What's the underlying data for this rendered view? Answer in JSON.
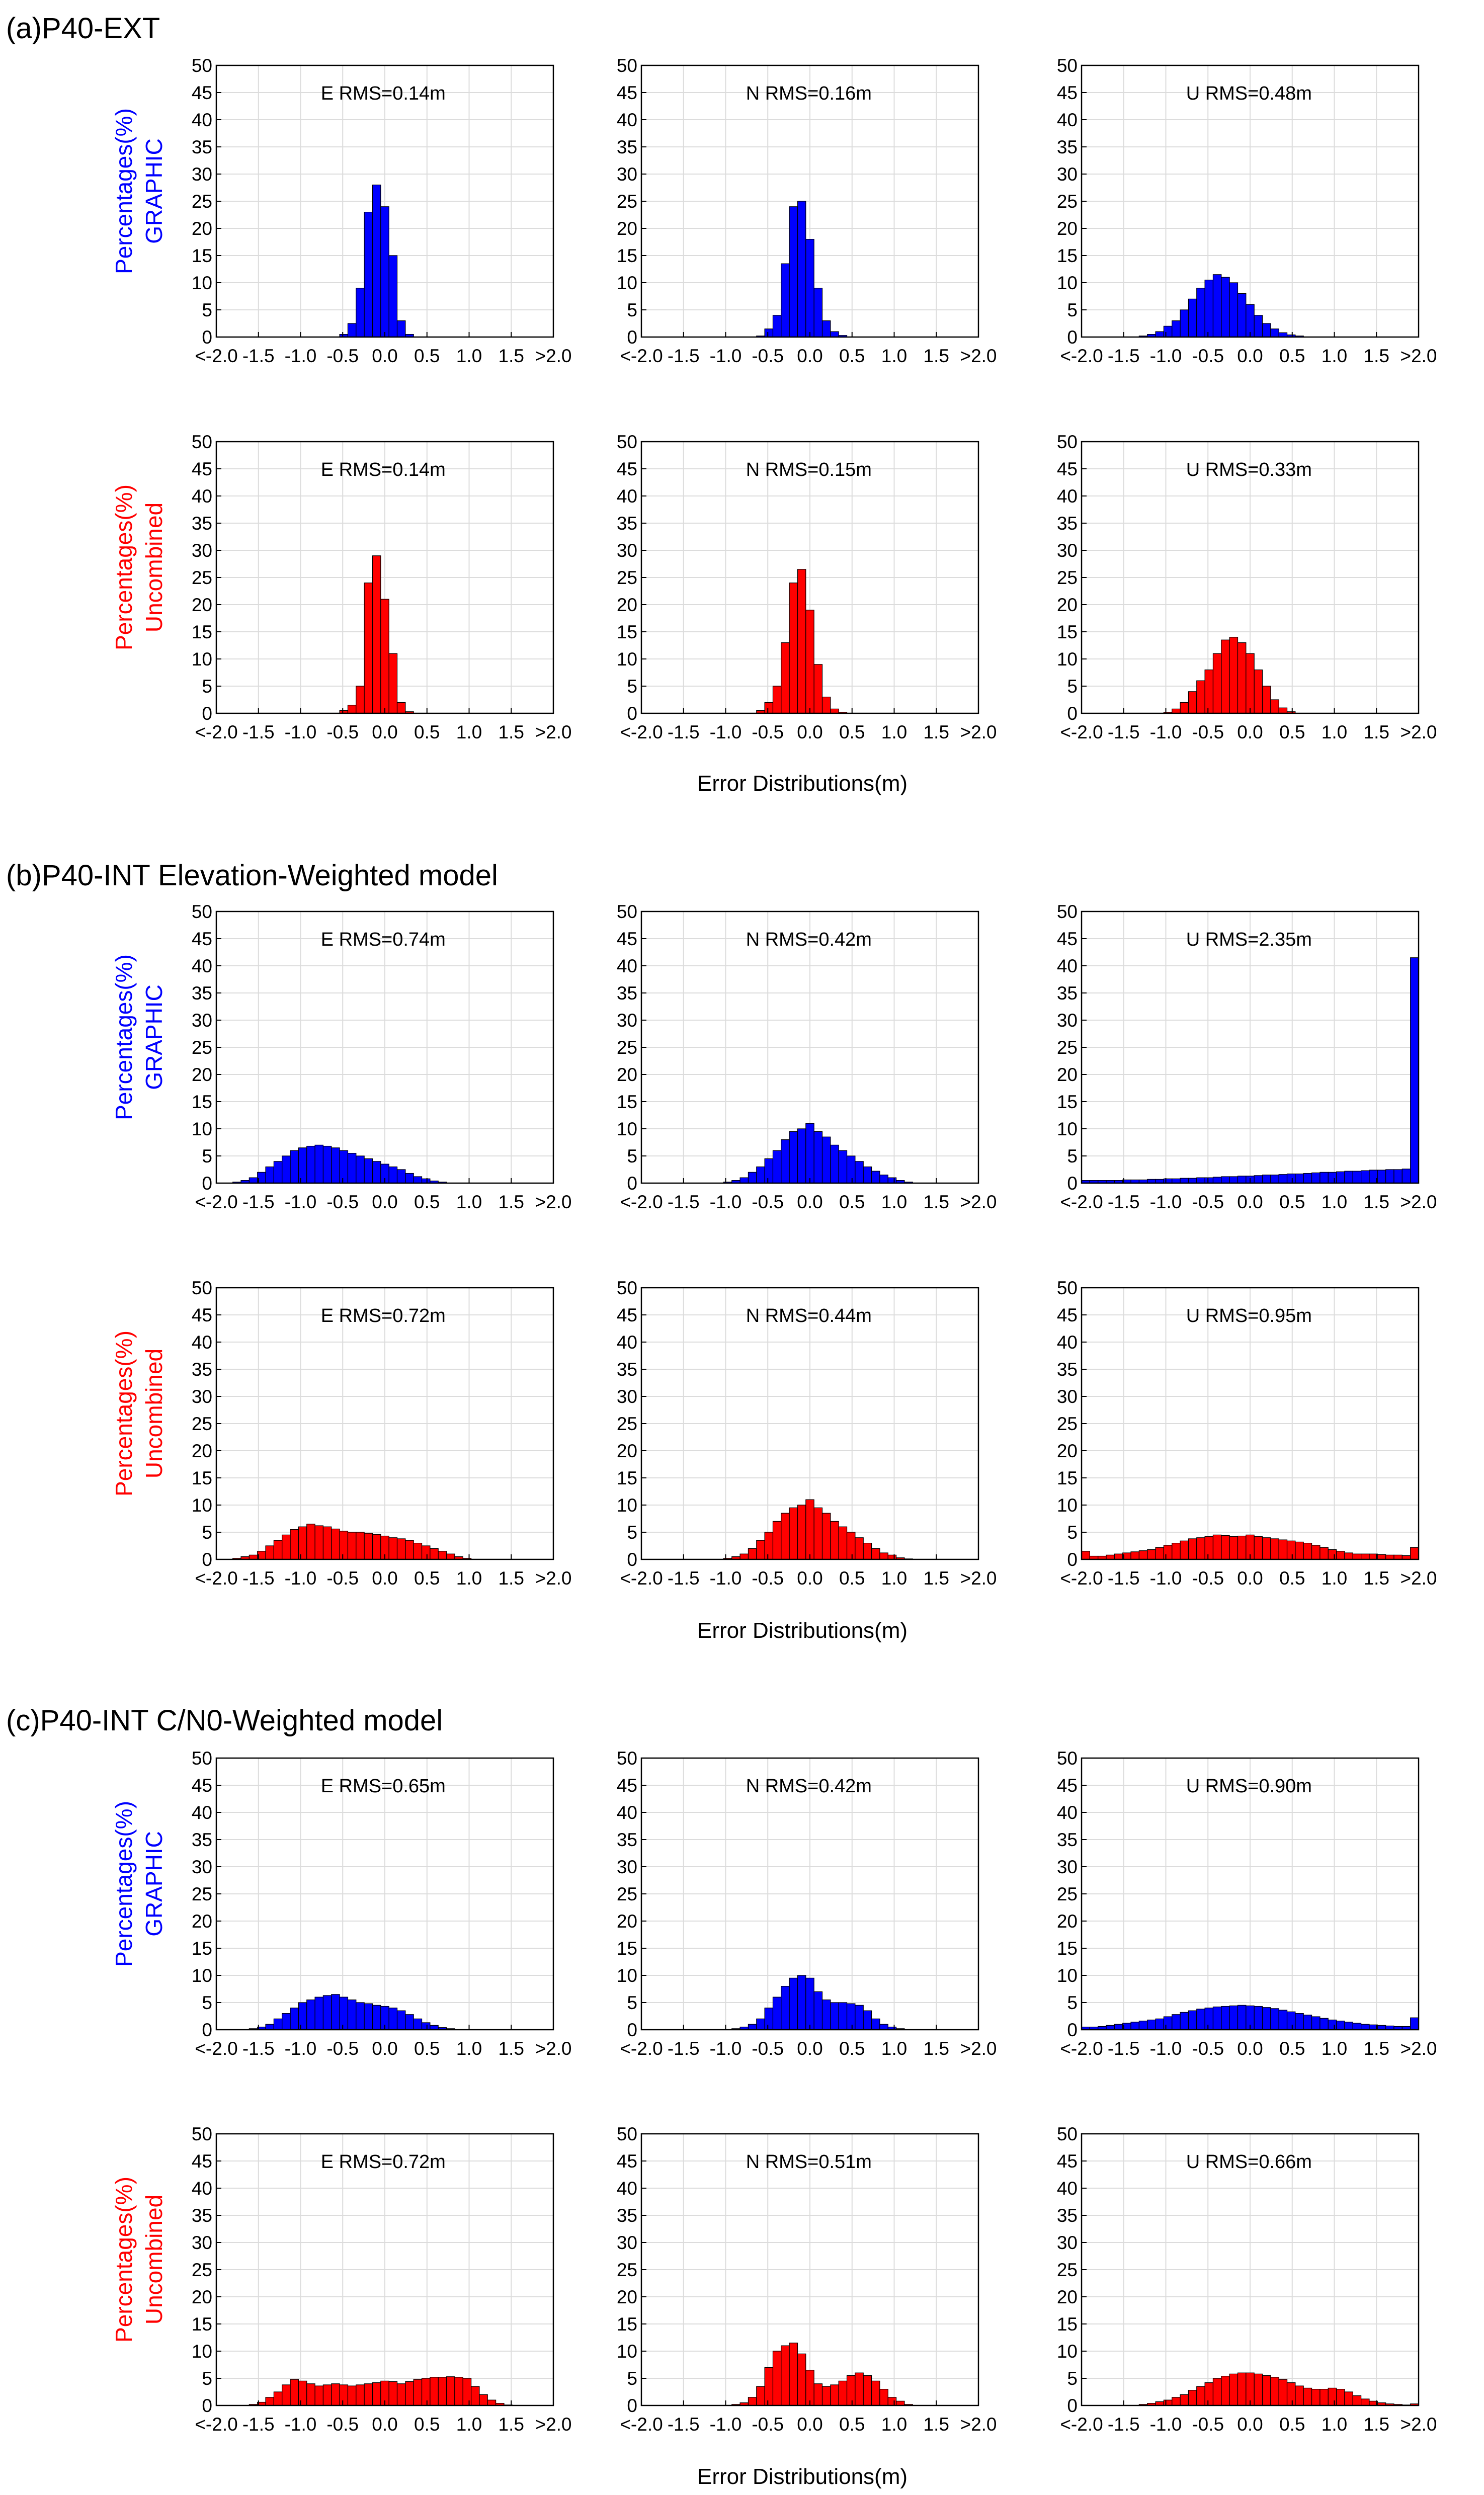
{
  "colors": {
    "GRAPHIC": "#0000ff",
    "Uncombined": "#ff0000",
    "grid": "#dcdcdc",
    "axis": "#000000"
  },
  "ylabel_models": [
    "GRAPHIC",
    "Uncombined"
  ],
  "ylabel": "Percentages(%)",
  "xlabel": "Error Distributions(m)",
  "xticks": [
    "<-2.0",
    "-1.5",
    "-1.0",
    "-0.5",
    "0.0",
    "0.5",
    "1.0",
    "1.5",
    ">2.0"
  ],
  "yticks": [
    "0",
    "5",
    "10",
    "15",
    "20",
    "25",
    "30",
    "35",
    "40",
    "45",
    "50"
  ],
  "sections": [
    {
      "title": "(a)P40-EXT"
    },
    {
      "title": "(b)P40-INT Elevation-Weighted model"
    },
    {
      "title": "(c)P40-INT C/N0-Weighted model"
    }
  ],
  "chart_data": [
    {
      "type": "bar",
      "section": 0,
      "model": "GRAPHIC",
      "component": "E",
      "rms_label": "E  RMS=0.14m",
      "ylim": [
        0,
        50
      ],
      "xlim": [
        -2.0,
        2.0
      ],
      "bin_width": 0.1,
      "grid": true,
      "values": [
        0,
        0,
        0,
        0,
        0,
        0,
        0,
        0,
        0,
        0,
        0,
        0,
        0,
        0,
        0,
        0.5,
        2.5,
        9,
        23,
        28,
        24,
        15,
        3,
        0.5,
        0,
        0,
        0,
        0,
        0,
        0,
        0,
        0,
        0,
        0,
        0,
        0,
        0,
        0,
        0,
        0,
        0
      ]
    },
    {
      "type": "bar",
      "section": 0,
      "model": "GRAPHIC",
      "component": "N",
      "rms_label": "N  RMS=0.16m",
      "ylim": [
        0,
        50
      ],
      "xlim": [
        -2.0,
        2.0
      ],
      "bin_width": 0.1,
      "grid": true,
      "values": [
        0,
        0,
        0,
        0,
        0,
        0,
        0,
        0,
        0,
        0,
        0,
        0,
        0,
        0,
        0.2,
        1.5,
        4,
        13.5,
        24,
        25,
        18,
        9,
        3,
        1,
        0.3,
        0,
        0,
        0,
        0,
        0,
        0,
        0,
        0,
        0,
        0,
        0,
        0,
        0,
        0,
        0,
        0
      ]
    },
    {
      "type": "bar",
      "section": 0,
      "model": "GRAPHIC",
      "component": "U",
      "rms_label": "U  RMS=0.48m",
      "ylim": [
        0,
        50
      ],
      "xlim": [
        -2.0,
        2.0
      ],
      "bin_width": 0.1,
      "grid": true,
      "values": [
        0,
        0,
        0,
        0,
        0,
        0,
        0,
        0.2,
        0.5,
        1,
        2,
        3,
        5,
        7,
        9,
        10.5,
        11.5,
        11,
        10,
        8,
        6,
        4,
        2.5,
        1.5,
        0.8,
        0.4,
        0.2,
        0,
        0,
        0,
        0,
        0,
        0,
        0,
        0,
        0,
        0,
        0,
        0,
        0,
        0
      ]
    },
    {
      "type": "bar",
      "section": 0,
      "model": "Uncombined",
      "component": "E",
      "rms_label": "E  RMS=0.14m",
      "ylim": [
        0,
        50
      ],
      "xlim": [
        -2.0,
        2.0
      ],
      "bin_width": 0.1,
      "grid": true,
      "values": [
        0,
        0,
        0,
        0,
        0,
        0,
        0,
        0,
        0,
        0,
        0,
        0,
        0,
        0,
        0,
        0.5,
        1.5,
        5,
        24,
        29,
        21,
        11,
        2,
        0.3,
        0,
        0,
        0,
        0,
        0,
        0,
        0,
        0,
        0,
        0,
        0,
        0,
        0,
        0,
        0,
        0,
        0
      ]
    },
    {
      "type": "bar",
      "section": 0,
      "model": "Uncombined",
      "component": "N",
      "rms_label": "N  RMS=0.15m",
      "ylim": [
        0,
        50
      ],
      "xlim": [
        -2.0,
        2.0
      ],
      "bin_width": 0.1,
      "grid": true,
      "values": [
        0,
        0,
        0,
        0,
        0,
        0,
        0,
        0,
        0,
        0,
        0,
        0,
        0,
        0,
        0.5,
        2,
        5,
        13,
        24,
        26.5,
        19,
        9,
        3,
        0.8,
        0.2,
        0,
        0,
        0,
        0,
        0,
        0,
        0,
        0,
        0,
        0,
        0,
        0,
        0,
        0,
        0,
        0
      ]
    },
    {
      "type": "bar",
      "section": 0,
      "model": "Uncombined",
      "component": "U",
      "rms_label": "U  RMS=0.33m",
      "ylim": [
        0,
        50
      ],
      "xlim": [
        -2.0,
        2.0
      ],
      "bin_width": 0.1,
      "grid": true,
      "values": [
        0,
        0,
        0,
        0,
        0,
        0,
        0,
        0,
        0,
        0,
        0.2,
        0.8,
        2,
        4,
        6,
        8,
        11,
        13.5,
        14,
        13,
        11,
        8,
        5,
        2.5,
        1,
        0.3,
        0,
        0,
        0,
        0,
        0,
        0,
        0,
        0,
        0,
        0,
        0,
        0,
        0,
        0,
        0
      ]
    },
    {
      "type": "bar",
      "section": 1,
      "model": "GRAPHIC",
      "component": "E",
      "rms_label": "E  RMS=0.74m",
      "ylim": [
        0,
        50
      ],
      "xlim": [
        -2.0,
        2.0
      ],
      "bin_width": 0.1,
      "grid": true,
      "values": [
        0,
        0,
        0.2,
        0.5,
        1,
        2,
        3,
        4,
        5,
        6,
        6.5,
        6.8,
        7,
        6.8,
        6.5,
        6,
        5.5,
        5,
        4.5,
        4,
        3.5,
        3,
        2.5,
        1.8,
        1.2,
        0.8,
        0.4,
        0.2,
        0,
        0,
        0,
        0,
        0,
        0,
        0,
        0,
        0,
        0,
        0,
        0,
        0
      ]
    },
    {
      "type": "bar",
      "section": 1,
      "model": "GRAPHIC",
      "component": "N",
      "rms_label": "N  RMS=0.42m",
      "ylim": [
        0,
        50
      ],
      "xlim": [
        -2.0,
        2.0
      ],
      "bin_width": 0.1,
      "grid": true,
      "values": [
        0,
        0,
        0,
        0,
        0,
        0,
        0,
        0,
        0,
        0,
        0.2,
        0.5,
        1,
        2,
        3,
        4.5,
        6,
        8,
        9.5,
        10,
        11,
        9.5,
        8.5,
        7,
        6,
        5,
        4,
        3,
        2.2,
        1.5,
        1,
        0.5,
        0.2,
        0,
        0,
        0,
        0,
        0,
        0,
        0,
        0
      ]
    },
    {
      "type": "bar",
      "section": 1,
      "model": "GRAPHIC",
      "component": "U",
      "rms_label": "U  RMS=2.35m",
      "ylim": [
        0,
        50
      ],
      "xlim": [
        -2.0,
        2.0
      ],
      "bin_width": 0.1,
      "grid": true,
      "values": [
        0.5,
        0.5,
        0.5,
        0.5,
        0.5,
        0.6,
        0.6,
        0.6,
        0.7,
        0.7,
        0.8,
        0.8,
        0.9,
        0.9,
        1,
        1,
        1.1,
        1.2,
        1.2,
        1.3,
        1.3,
        1.4,
        1.5,
        1.5,
        1.6,
        1.7,
        1.7,
        1.8,
        1.9,
        2,
        2,
        2.1,
        2.2,
        2.2,
        2.3,
        2.4,
        2.4,
        2.5,
        2.5,
        2.6,
        41.5
      ]
    },
    {
      "type": "bar",
      "section": 1,
      "model": "Uncombined",
      "component": "E",
      "rms_label": "E  RMS=0.72m",
      "ylim": [
        0,
        50
      ],
      "xlim": [
        -2.0,
        2.0
      ],
      "bin_width": 0.1,
      "grid": true,
      "values": [
        0,
        0,
        0.2,
        0.5,
        0.8,
        1.5,
        2.5,
        3.5,
        4.5,
        5.5,
        6,
        6.5,
        6.2,
        6,
        5.6,
        5.2,
        5,
        5,
        4.8,
        4.6,
        4.3,
        4,
        3.8,
        3.5,
        3,
        2.5,
        2,
        1.5,
        1,
        0.5,
        0.2,
        0,
        0,
        0,
        0,
        0,
        0,
        0,
        0,
        0,
        0
      ]
    },
    {
      "type": "bar",
      "section": 1,
      "model": "Uncombined",
      "component": "N",
      "rms_label": "N  RMS=0.44m",
      "ylim": [
        0,
        50
      ],
      "xlim": [
        -2.0,
        2.0
      ],
      "bin_width": 0.1,
      "grid": true,
      "values": [
        0,
        0,
        0,
        0,
        0,
        0,
        0,
        0,
        0,
        0,
        0.2,
        0.5,
        1,
        2,
        3.5,
        5,
        7,
        8.5,
        9.5,
        10,
        11,
        9.5,
        8.5,
        7,
        6,
        5,
        4,
        3,
        2,
        1.2,
        0.8,
        0.3,
        0.1,
        0,
        0,
        0,
        0,
        0,
        0,
        0,
        0
      ]
    },
    {
      "type": "bar",
      "section": 1,
      "model": "Uncombined",
      "component": "U",
      "rms_label": "U  RMS=0.95m",
      "ylim": [
        0,
        50
      ],
      "xlim": [
        -2.0,
        2.0
      ],
      "bin_width": 0.1,
      "grid": true,
      "values": [
        1.5,
        0.6,
        0.6,
        0.8,
        1,
        1.2,
        1.4,
        1.6,
        1.8,
        2.2,
        2.6,
        3,
        3.4,
        3.8,
        4,
        4.2,
        4.5,
        4.4,
        4.2,
        4.3,
        4.5,
        4.2,
        4,
        3.8,
        3.6,
        3.4,
        3.2,
        3,
        2.6,
        2.2,
        1.8,
        1.5,
        1.2,
        1,
        1,
        1,
        0.9,
        0.8,
        0.8,
        0.7,
        2.2
      ]
    },
    {
      "type": "bar",
      "section": 2,
      "model": "GRAPHIC",
      "component": "E",
      "rms_label": "E RMS=0.65m",
      "ylim": [
        0,
        50
      ],
      "xlim": [
        -2.0,
        2.0
      ],
      "bin_width": 0.1,
      "grid": true,
      "values": [
        0,
        0,
        0,
        0,
        0.2,
        0.5,
        1,
        2,
        3,
        4,
        5,
        5.5,
        6,
        6.3,
        6.5,
        6,
        5.5,
        5,
        4.8,
        4.5,
        4.3,
        4,
        3.5,
        2.8,
        2,
        1.3,
        0.8,
        0.4,
        0.2,
        0,
        0,
        0,
        0,
        0,
        0,
        0,
        0,
        0,
        0,
        0,
        0
      ]
    },
    {
      "type": "bar",
      "section": 2,
      "model": "GRAPHIC",
      "component": "N",
      "rms_label": "N RMS=0.42m",
      "ylim": [
        0,
        50
      ],
      "xlim": [
        -2.0,
        2.0
      ],
      "bin_width": 0.1,
      "grid": true,
      "values": [
        0,
        0,
        0,
        0,
        0,
        0,
        0,
        0,
        0,
        0,
        0,
        0.2,
        0.5,
        1,
        2,
        4,
        6,
        8,
        9.5,
        10,
        9.5,
        7,
        5.5,
        5,
        5,
        4.8,
        4.5,
        3.5,
        2,
        1,
        0.5,
        0.2,
        0,
        0,
        0,
        0,
        0,
        0,
        0,
        0,
        0
      ]
    },
    {
      "type": "bar",
      "section": 2,
      "model": "GRAPHIC",
      "component": "U",
      "rms_label": "U RMS=0.90m",
      "ylim": [
        0,
        50
      ],
      "xlim": [
        -2.0,
        2.0
      ],
      "bin_width": 0.1,
      "grid": true,
      "values": [
        0.5,
        0.5,
        0.6,
        0.8,
        1,
        1.2,
        1.4,
        1.6,
        1.8,
        2,
        2.4,
        2.8,
        3.2,
        3.5,
        3.8,
        4,
        4.2,
        4.3,
        4.4,
        4.5,
        4.4,
        4.3,
        4.1,
        3.9,
        3.6,
        3.3,
        3,
        2.7,
        2.4,
        2.1,
        1.8,
        1.6,
        1.4,
        1.2,
        1,
        0.9,
        0.8,
        0.7,
        0.6,
        0.6,
        2.2
      ]
    },
    {
      "type": "bar",
      "section": 2,
      "model": "Uncombined",
      "component": "E",
      "rms_label": "E RMS=0.72m",
      "ylim": [
        0,
        50
      ],
      "xlim": [
        -2.0,
        2.0
      ],
      "bin_width": 0.1,
      "grid": true,
      "values": [
        0,
        0,
        0,
        0,
        0.2,
        0.6,
        1.5,
        2.5,
        3.8,
        4.8,
        4.5,
        4,
        3.6,
        3.8,
        4,
        3.8,
        3.6,
        3.8,
        4,
        4.2,
        4.5,
        4.4,
        4,
        4.4,
        4.8,
        5,
        5.2,
        5.2,
        5.3,
        5.2,
        5,
        3.5,
        2,
        1,
        0.4,
        0.1,
        0,
        0,
        0,
        0,
        0
      ]
    },
    {
      "type": "bar",
      "section": 2,
      "model": "Uncombined",
      "component": "N",
      "rms_label": "N RMS=0.51m",
      "ylim": [
        0,
        50
      ],
      "xlim": [
        -2.0,
        2.0
      ],
      "bin_width": 0.1,
      "grid": true,
      "values": [
        0,
        0,
        0,
        0,
        0,
        0,
        0,
        0,
        0,
        0,
        0,
        0.2,
        0.5,
        1.5,
        3.5,
        7,
        10,
        11,
        11.5,
        9.5,
        6.5,
        4,
        3.5,
        3.8,
        4.5,
        5.5,
        6,
        5.5,
        4.5,
        3,
        1.5,
        0.8,
        0.2,
        0,
        0,
        0,
        0,
        0,
        0,
        0,
        0
      ]
    },
    {
      "type": "bar",
      "section": 2,
      "model": "Uncombined",
      "component": "U",
      "rms_label": "U RMS=0.66m",
      "ylim": [
        0,
        50
      ],
      "xlim": [
        -2.0,
        2.0
      ],
      "bin_width": 0.1,
      "grid": true,
      "values": [
        0,
        0,
        0,
        0,
        0,
        0,
        0,
        0.2,
        0.4,
        0.7,
        1,
        1.5,
        2,
        2.8,
        3.5,
        4.2,
        5,
        5.4,
        5.8,
        6,
        6,
        5.8,
        5.5,
        5.2,
        4.8,
        4.2,
        3.6,
        3.2,
        3,
        3,
        3.2,
        3,
        2.5,
        1.8,
        1.2,
        0.8,
        0.5,
        0.3,
        0.2,
        0.1,
        0.3
      ]
    }
  ]
}
